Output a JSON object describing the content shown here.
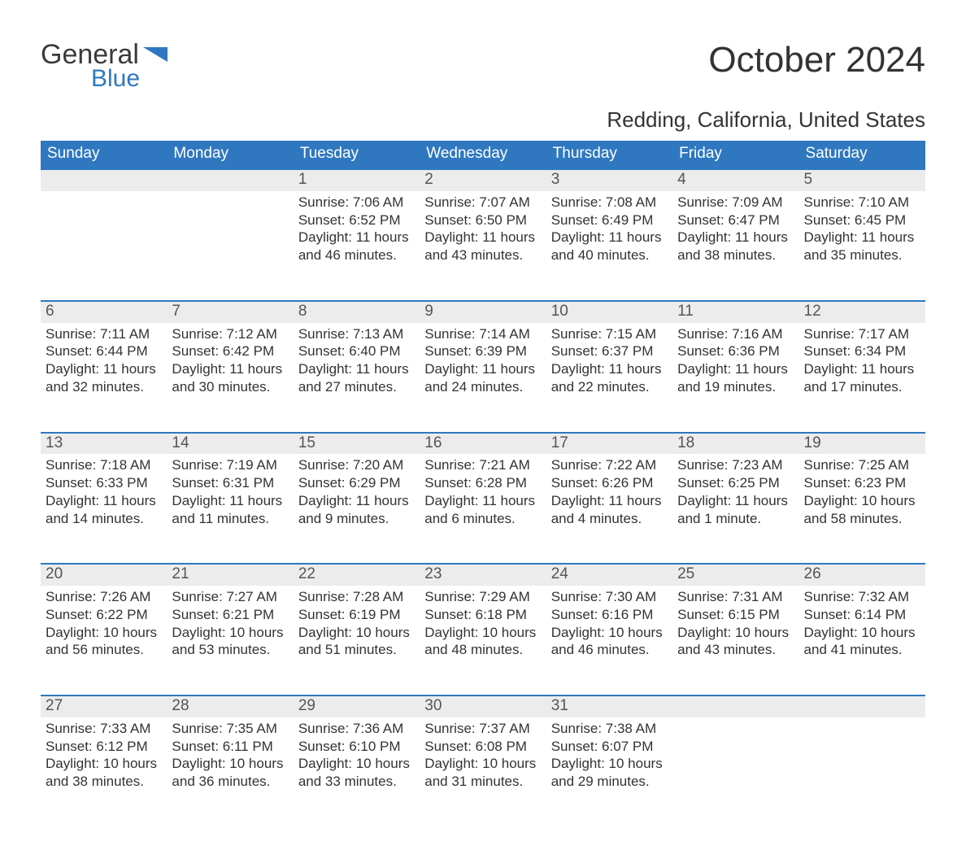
{
  "brand": {
    "part1": "General",
    "part2": "Blue"
  },
  "title": "October 2024",
  "location": "Redding, California, United States",
  "colors": {
    "header_bg": "#2f78c0",
    "header_text": "#ffffff",
    "daynum_bg": "#ececec",
    "daynum_border": "#2f78c0",
    "body_text": "#333333",
    "page_bg": "#ffffff"
  },
  "typography": {
    "title_fontsize": 44,
    "location_fontsize": 26,
    "header_fontsize": 19,
    "daynum_fontsize": 19,
    "body_fontsize": 17
  },
  "dow": [
    "Sunday",
    "Monday",
    "Tuesday",
    "Wednesday",
    "Thursday",
    "Friday",
    "Saturday"
  ],
  "weeks": [
    [
      null,
      null,
      {
        "n": "1",
        "sr": "Sunrise: 7:06 AM",
        "ss": "Sunset: 6:52 PM",
        "dl1": "Daylight: 11 hours",
        "dl2": "and 46 minutes."
      },
      {
        "n": "2",
        "sr": "Sunrise: 7:07 AM",
        "ss": "Sunset: 6:50 PM",
        "dl1": "Daylight: 11 hours",
        "dl2": "and 43 minutes."
      },
      {
        "n": "3",
        "sr": "Sunrise: 7:08 AM",
        "ss": "Sunset: 6:49 PM",
        "dl1": "Daylight: 11 hours",
        "dl2": "and 40 minutes."
      },
      {
        "n": "4",
        "sr": "Sunrise: 7:09 AM",
        "ss": "Sunset: 6:47 PM",
        "dl1": "Daylight: 11 hours",
        "dl2": "and 38 minutes."
      },
      {
        "n": "5",
        "sr": "Sunrise: 7:10 AM",
        "ss": "Sunset: 6:45 PM",
        "dl1": "Daylight: 11 hours",
        "dl2": "and 35 minutes."
      }
    ],
    [
      {
        "n": "6",
        "sr": "Sunrise: 7:11 AM",
        "ss": "Sunset: 6:44 PM",
        "dl1": "Daylight: 11 hours",
        "dl2": "and 32 minutes."
      },
      {
        "n": "7",
        "sr": "Sunrise: 7:12 AM",
        "ss": "Sunset: 6:42 PM",
        "dl1": "Daylight: 11 hours",
        "dl2": "and 30 minutes."
      },
      {
        "n": "8",
        "sr": "Sunrise: 7:13 AM",
        "ss": "Sunset: 6:40 PM",
        "dl1": "Daylight: 11 hours",
        "dl2": "and 27 minutes."
      },
      {
        "n": "9",
        "sr": "Sunrise: 7:14 AM",
        "ss": "Sunset: 6:39 PM",
        "dl1": "Daylight: 11 hours",
        "dl2": "and 24 minutes."
      },
      {
        "n": "10",
        "sr": "Sunrise: 7:15 AM",
        "ss": "Sunset: 6:37 PM",
        "dl1": "Daylight: 11 hours",
        "dl2": "and 22 minutes."
      },
      {
        "n": "11",
        "sr": "Sunrise: 7:16 AM",
        "ss": "Sunset: 6:36 PM",
        "dl1": "Daylight: 11 hours",
        "dl2": "and 19 minutes."
      },
      {
        "n": "12",
        "sr": "Sunrise: 7:17 AM",
        "ss": "Sunset: 6:34 PM",
        "dl1": "Daylight: 11 hours",
        "dl2": "and 17 minutes."
      }
    ],
    [
      {
        "n": "13",
        "sr": "Sunrise: 7:18 AM",
        "ss": "Sunset: 6:33 PM",
        "dl1": "Daylight: 11 hours",
        "dl2": "and 14 minutes."
      },
      {
        "n": "14",
        "sr": "Sunrise: 7:19 AM",
        "ss": "Sunset: 6:31 PM",
        "dl1": "Daylight: 11 hours",
        "dl2": "and 11 minutes."
      },
      {
        "n": "15",
        "sr": "Sunrise: 7:20 AM",
        "ss": "Sunset: 6:29 PM",
        "dl1": "Daylight: 11 hours",
        "dl2": "and 9 minutes."
      },
      {
        "n": "16",
        "sr": "Sunrise: 7:21 AM",
        "ss": "Sunset: 6:28 PM",
        "dl1": "Daylight: 11 hours",
        "dl2": "and 6 minutes."
      },
      {
        "n": "17",
        "sr": "Sunrise: 7:22 AM",
        "ss": "Sunset: 6:26 PM",
        "dl1": "Daylight: 11 hours",
        "dl2": "and 4 minutes."
      },
      {
        "n": "18",
        "sr": "Sunrise: 7:23 AM",
        "ss": "Sunset: 6:25 PM",
        "dl1": "Daylight: 11 hours",
        "dl2": "and 1 minute."
      },
      {
        "n": "19",
        "sr": "Sunrise: 7:25 AM",
        "ss": "Sunset: 6:23 PM",
        "dl1": "Daylight: 10 hours",
        "dl2": "and 58 minutes."
      }
    ],
    [
      {
        "n": "20",
        "sr": "Sunrise: 7:26 AM",
        "ss": "Sunset: 6:22 PM",
        "dl1": "Daylight: 10 hours",
        "dl2": "and 56 minutes."
      },
      {
        "n": "21",
        "sr": "Sunrise: 7:27 AM",
        "ss": "Sunset: 6:21 PM",
        "dl1": "Daylight: 10 hours",
        "dl2": "and 53 minutes."
      },
      {
        "n": "22",
        "sr": "Sunrise: 7:28 AM",
        "ss": "Sunset: 6:19 PM",
        "dl1": "Daylight: 10 hours",
        "dl2": "and 51 minutes."
      },
      {
        "n": "23",
        "sr": "Sunrise: 7:29 AM",
        "ss": "Sunset: 6:18 PM",
        "dl1": "Daylight: 10 hours",
        "dl2": "and 48 minutes."
      },
      {
        "n": "24",
        "sr": "Sunrise: 7:30 AM",
        "ss": "Sunset: 6:16 PM",
        "dl1": "Daylight: 10 hours",
        "dl2": "and 46 minutes."
      },
      {
        "n": "25",
        "sr": "Sunrise: 7:31 AM",
        "ss": "Sunset: 6:15 PM",
        "dl1": "Daylight: 10 hours",
        "dl2": "and 43 minutes."
      },
      {
        "n": "26",
        "sr": "Sunrise: 7:32 AM",
        "ss": "Sunset: 6:14 PM",
        "dl1": "Daylight: 10 hours",
        "dl2": "and 41 minutes."
      }
    ],
    [
      {
        "n": "27",
        "sr": "Sunrise: 7:33 AM",
        "ss": "Sunset: 6:12 PM",
        "dl1": "Daylight: 10 hours",
        "dl2": "and 38 minutes."
      },
      {
        "n": "28",
        "sr": "Sunrise: 7:35 AM",
        "ss": "Sunset: 6:11 PM",
        "dl1": "Daylight: 10 hours",
        "dl2": "and 36 minutes."
      },
      {
        "n": "29",
        "sr": "Sunrise: 7:36 AM",
        "ss": "Sunset: 6:10 PM",
        "dl1": "Daylight: 10 hours",
        "dl2": "and 33 minutes."
      },
      {
        "n": "30",
        "sr": "Sunrise: 7:37 AM",
        "ss": "Sunset: 6:08 PM",
        "dl1": "Daylight: 10 hours",
        "dl2": "and 31 minutes."
      },
      {
        "n": "31",
        "sr": "Sunrise: 7:38 AM",
        "ss": "Sunset: 6:07 PM",
        "dl1": "Daylight: 10 hours",
        "dl2": "and 29 minutes."
      },
      null,
      null
    ]
  ]
}
